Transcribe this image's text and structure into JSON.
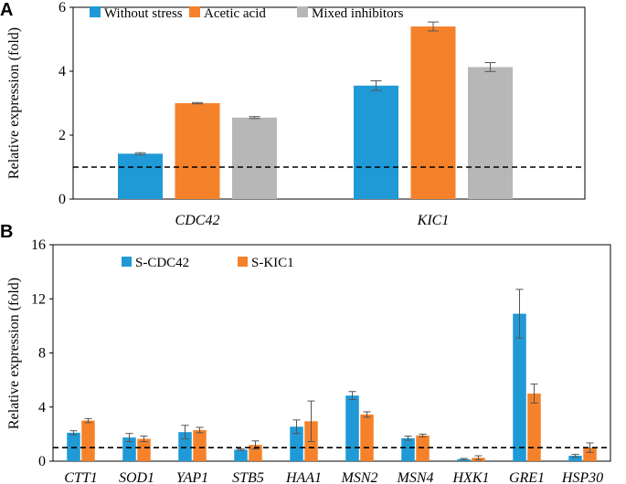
{
  "chart_data": [
    {
      "panel": "A",
      "type": "bar",
      "ylabel": "Relative expression (fold)",
      "xlabel": "",
      "ylim": [
        0,
        6
      ],
      "yticks": [
        0,
        2,
        4,
        6
      ],
      "reference_line": 1.0,
      "legend": "top-left",
      "categories": [
        "CDC42",
        "KIC1"
      ],
      "series": [
        {
          "name": "Without stress",
          "color": "#1f9ad6",
          "values": [
            1.42,
            3.55
          ],
          "errors": [
            0.03,
            0.15
          ]
        },
        {
          "name": "Acetic acid",
          "color": "#f5822a",
          "values": [
            3.0,
            5.4
          ],
          "errors": [
            0.02,
            0.14
          ]
        },
        {
          "name": "Mixed inhibitors",
          "color": "#b7b7b7",
          "values": [
            2.55,
            4.13
          ],
          "errors": [
            0.03,
            0.14
          ]
        }
      ]
    },
    {
      "panel": "B",
      "type": "bar",
      "ylabel": "Relative expression (fold)",
      "xlabel": "",
      "ylim": [
        0,
        16
      ],
      "yticks": [
        0,
        4,
        8,
        12,
        16
      ],
      "reference_line": 1.0,
      "legend": "top-left",
      "categories": [
        "CTT1",
        "SOD1",
        "YAP1",
        "STB5",
        "HAA1",
        "MSN2",
        "MSN4",
        "HXK1",
        "GRE1",
        "HSP30"
      ],
      "series": [
        {
          "name": "S-CDC42",
          "color": "#1f9ad6",
          "values": [
            2.1,
            1.75,
            2.15,
            0.85,
            2.55,
            4.85,
            1.7,
            0.15,
            10.9,
            0.4
          ],
          "errors": [
            0.15,
            0.3,
            0.5,
            0.05,
            0.5,
            0.3,
            0.15,
            0.05,
            1.8,
            0.1
          ]
        },
        {
          "name": "S-KIC1",
          "color": "#f5822a",
          "values": [
            3.0,
            1.65,
            2.3,
            1.2,
            2.95,
            3.45,
            1.9,
            0.25,
            5.0,
            1.0
          ],
          "errors": [
            0.15,
            0.2,
            0.2,
            0.3,
            1.5,
            0.2,
            0.1,
            0.15,
            0.7,
            0.35
          ]
        }
      ]
    }
  ]
}
